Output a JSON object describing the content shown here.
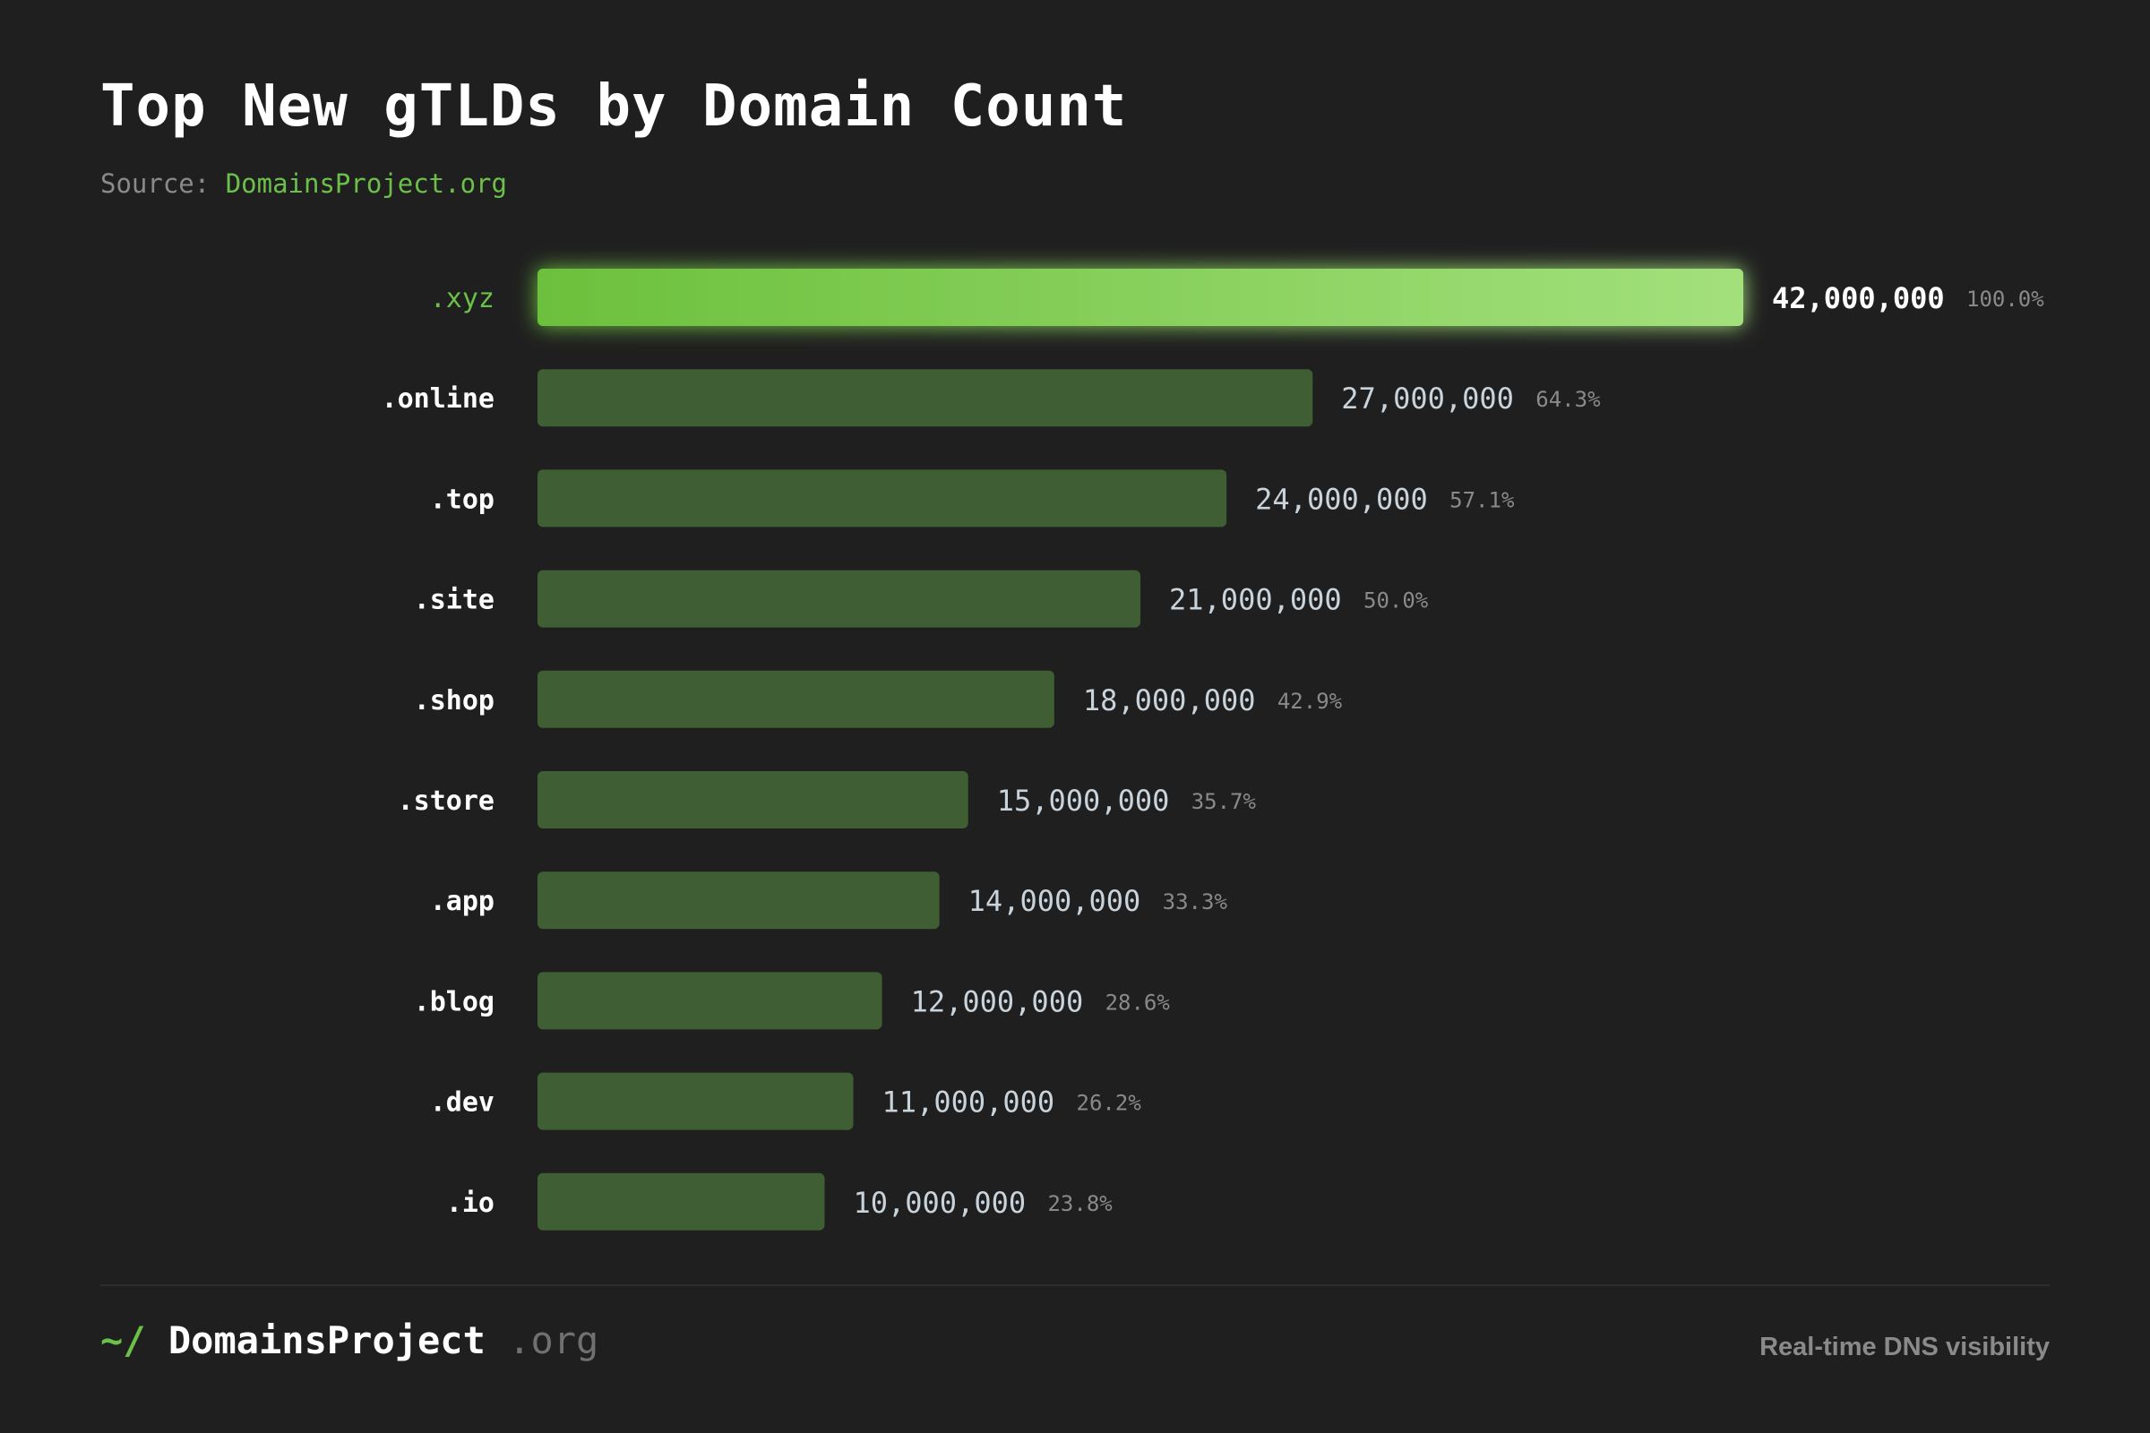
{
  "header": {
    "title": "Top New gTLDs by Domain Count",
    "source_label": "Source:",
    "source_link": "DomainsProject.org"
  },
  "footer": {
    "logo_mark": "~/",
    "logo_name": "DomainsProject",
    "logo_tld": ".org",
    "tagline": "Real-time DNS visibility"
  },
  "colors": {
    "background": "#1f1f1f",
    "accent": "#6cc04a",
    "highlight_bar_start": "#6cc03c",
    "highlight_bar_end": "#a3e07c",
    "bar": "#3f5e34",
    "value_text": "#c8d3dc",
    "percent_text": "#8a8a8a"
  },
  "chart_data": {
    "type": "bar",
    "orientation": "horizontal",
    "categories": [
      ".xyz",
      ".online",
      ".top",
      ".site",
      ".shop",
      ".store",
      ".app",
      ".blog",
      ".dev",
      ".io"
    ],
    "values": [
      42000000,
      27000000,
      24000000,
      21000000,
      18000000,
      15000000,
      14000000,
      12000000,
      11000000,
      10000000
    ],
    "value_labels": [
      "42,000,000",
      "27,000,000",
      "24,000,000",
      "21,000,000",
      "18,000,000",
      "15,000,000",
      "14,000,000",
      "12,000,000",
      "11,000,000",
      "10,000,000"
    ],
    "percent_labels": [
      "100.0%",
      "64.3%",
      "57.1%",
      "50.0%",
      "42.9%",
      "35.7%",
      "33.3%",
      "28.6%",
      "26.2%",
      "23.8%"
    ],
    "highlight_index": 0,
    "xlim": [
      0,
      42000000
    ],
    "grid": false,
    "legend": "none"
  }
}
